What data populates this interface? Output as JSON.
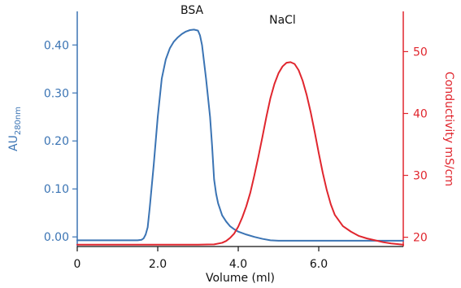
{
  "chart_data": {
    "type": "line",
    "xlabel": "Volume (ml)",
    "ylabel_left_main": "AU",
    "ylabel_left_sub": "280nm",
    "ylabel_right": "Conductivity mS/cm",
    "xlim": [
      0,
      8.1
    ],
    "ylim_left": [
      -0.02,
      0.47
    ],
    "ylim_right": [
      18.5,
      56.5
    ],
    "x_ticks": [
      {
        "value": 0,
        "label": "0"
      },
      {
        "value": 2,
        "label": "2.0"
      },
      {
        "value": 4,
        "label": "4.0"
      },
      {
        "value": 6,
        "label": "6.0"
      }
    ],
    "y_ticks_left": [
      {
        "value": 0,
        "label": "0.00"
      },
      {
        "value": 0.1,
        "label": "0.10"
      },
      {
        "value": 0.2,
        "label": "0.20"
      },
      {
        "value": 0.3,
        "label": "0.30"
      },
      {
        "value": 0.4,
        "label": "0.40"
      }
    ],
    "y_ticks_right": [
      {
        "value": 20,
        "label": "20"
      },
      {
        "value": 30,
        "label": "30"
      },
      {
        "value": 40,
        "label": "40"
      },
      {
        "value": 50,
        "label": "50"
      }
    ],
    "colors": {
      "left_axis": "#3b74b4",
      "right_axis": "#e0262e",
      "text": "#111111"
    },
    "series": [
      {
        "name": "BSA",
        "axis": "left",
        "color": "#3b74b4",
        "x": [
          0,
          0.5,
          1.0,
          1.5,
          1.6,
          1.65,
          1.7,
          1.75,
          1.8,
          1.9,
          2.0,
          2.1,
          2.2,
          2.3,
          2.4,
          2.5,
          2.6,
          2.7,
          2.8,
          2.9,
          3.0,
          3.05,
          3.1,
          3.2,
          3.3,
          3.35,
          3.4,
          3.45,
          3.5,
          3.6,
          3.7,
          3.8,
          3.9,
          4.0,
          4.2,
          4.4,
          4.6,
          4.8,
          5.0,
          6.0,
          7.0,
          8.1
        ],
        "y": [
          -0.007,
          -0.007,
          -0.007,
          -0.007,
          -0.006,
          -0.003,
          0.005,
          0.02,
          0.06,
          0.15,
          0.25,
          0.33,
          0.37,
          0.393,
          0.407,
          0.416,
          0.423,
          0.428,
          0.431,
          0.432,
          0.43,
          0.42,
          0.4,
          0.33,
          0.25,
          0.19,
          0.12,
          0.09,
          0.07,
          0.045,
          0.032,
          0.022,
          0.016,
          0.011,
          0.005,
          0.0,
          -0.004,
          -0.007,
          -0.008,
          -0.008,
          -0.008,
          -0.008
        ]
      },
      {
        "name": "NaCl",
        "axis": "right",
        "color": "#e0262e",
        "x": [
          0,
          1.0,
          2.0,
          3.0,
          3.4,
          3.6,
          3.7,
          3.8,
          3.9,
          4.0,
          4.1,
          4.2,
          4.3,
          4.4,
          4.5,
          4.6,
          4.7,
          4.8,
          4.9,
          5.0,
          5.1,
          5.2,
          5.3,
          5.4,
          5.5,
          5.6,
          5.7,
          5.8,
          5.9,
          6.0,
          6.1,
          6.2,
          6.3,
          6.4,
          6.6,
          6.8,
          7.0,
          7.2,
          7.4,
          7.6,
          7.8,
          8.1
        ],
        "y": [
          18.8,
          18.8,
          18.8,
          18.8,
          18.85,
          19.1,
          19.4,
          19.9,
          20.6,
          21.7,
          23.2,
          25.0,
          27.2,
          30.0,
          33.0,
          36.2,
          39.5,
          42.5,
          44.8,
          46.5,
          47.6,
          48.2,
          48.3,
          48.0,
          47.0,
          45.3,
          43.0,
          40.2,
          37.0,
          33.6,
          30.4,
          27.6,
          25.3,
          23.6,
          21.8,
          20.9,
          20.2,
          19.8,
          19.5,
          19.2,
          19.0,
          18.8
        ]
      }
    ],
    "annotations": [
      {
        "text": "BSA",
        "x": 2.85,
        "y_left": 0.465
      },
      {
        "text": "NaCl",
        "x": 5.1,
        "y_right": 54.5
      }
    ]
  }
}
